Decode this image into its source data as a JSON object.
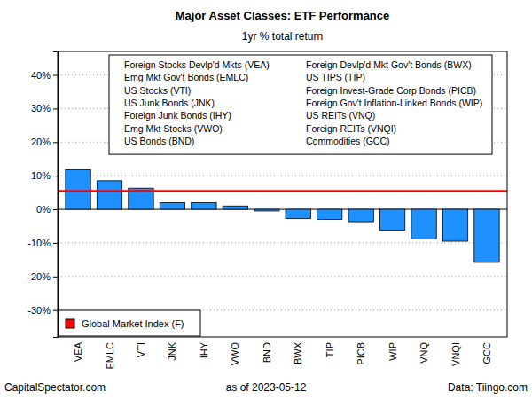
{
  "chart_data": {
    "type": "bar",
    "title": "Major Asset Classes: ETF Performance",
    "subtitle": "1yr % total return",
    "categories": [
      "VEA",
      "EMLC",
      "VTI",
      "JNK",
      "IHY",
      "VWO",
      "BND",
      "BWX",
      "TIP",
      "PICB",
      "WIP",
      "VNQ",
      "VNQI",
      "GCC"
    ],
    "values": [
      11.8,
      8.5,
      6.3,
      2.0,
      2.0,
      1.0,
      -0.5,
      -2.8,
      -3.0,
      -3.7,
      -6.2,
      -8.8,
      -9.5,
      -15.8
    ],
    "color": "#1e90ff",
    "ylim": [
      -38,
      47
    ],
    "yticks": [
      {
        "value": -30,
        "label": "-30%"
      },
      {
        "value": -20,
        "label": "-20%"
      },
      {
        "value": -10,
        "label": "-10%"
      },
      {
        "value": 0,
        "label": "0%"
      },
      {
        "value": 10,
        "label": "10%"
      },
      {
        "value": 20,
        "label": "20%"
      },
      {
        "value": 30,
        "label": "30%"
      },
      {
        "value": 40,
        "label": "40%"
      }
    ],
    "grid": true,
    "legend": "bottomleft",
    "annotations": [
      "Foreign Stocks Devlp'd Mkts (VEA)",
      "Emg Mkt Gov't Bonds (EMLC)",
      "US Stocks (VTI)",
      "US Junk Bonds (JNK)",
      "Foreign Junk Bonds (IHY)",
      "Emg Mkt Stocks (VWO)",
      "US Bonds (BND)",
      "Foreign Devlp'd Mkt Gov't Bonds (BWX)",
      "US TIPS (TIP)",
      "Foreign Invest-Grade Corp Bonds (PICB)",
      "Foreign Gov't Inflation-Linked Bonds (WIP)",
      "US REITs (VNQ)",
      "Foreign REITs (VNQI)",
      "Commodities (GCC)"
    ],
    "reference_lines": [
      {
        "name": "Global Market Index (F)",
        "value": 5.5,
        "color": "#ff0000"
      }
    ],
    "footer": [
      "CapitalSpectator.com",
      "as of  2023-05-12",
      "Data: Tiingo.com"
    ]
  }
}
